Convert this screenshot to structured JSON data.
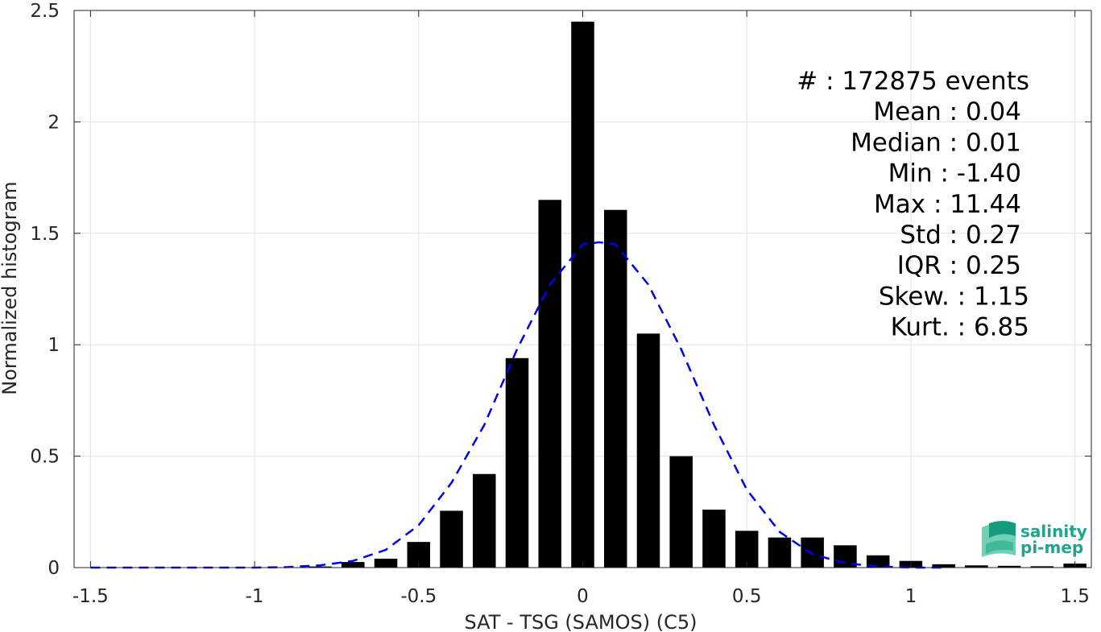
{
  "chart_data": {
    "type": "bar",
    "xlabel": "SAT - TSG (SAMOS) (C5)",
    "ylabel": "Normalized histogram",
    "xlim": [
      -1.55,
      1.55
    ],
    "ylim": [
      0,
      2.5
    ],
    "xticks": [
      -1.5,
      -1,
      -0.5,
      0,
      0.5,
      1,
      1.5
    ],
    "xtick_labels": [
      "-1.5",
      "-1",
      "-0.5",
      "0",
      "0.5",
      "1",
      "1.5"
    ],
    "yticks": [
      0,
      0.5,
      1,
      1.5,
      2,
      2.5
    ],
    "ytick_labels": [
      "0",
      "0.5",
      "1",
      "1.5",
      "2",
      "2.5"
    ],
    "grid": true,
    "bar_color": "#000000",
    "bar_width": 0.07,
    "bars": {
      "x": [
        -0.8,
        -0.7,
        -0.6,
        -0.5,
        -0.4,
        -0.3,
        -0.2,
        -0.1,
        0.0,
        0.1,
        0.2,
        0.3,
        0.4,
        0.5,
        0.6,
        0.7,
        0.8,
        0.9,
        1.0,
        1.1,
        1.2,
        1.3,
        1.4,
        1.5
      ],
      "values": [
        0.005,
        0.025,
        0.04,
        0.115,
        0.255,
        0.42,
        0.94,
        1.65,
        2.45,
        1.605,
        1.05,
        0.5,
        0.26,
        0.165,
        0.135,
        0.135,
        0.1,
        0.055,
        0.03,
        0.015,
        0.01,
        0.008,
        0.006,
        0.018
      ]
    },
    "fit_curve": {
      "style": "dashed",
      "color": "#0000ee",
      "x": [
        -1.5,
        -1.3,
        -1.1,
        -1.0,
        -0.9,
        -0.8,
        -0.7,
        -0.6,
        -0.5,
        -0.4,
        -0.3,
        -0.2,
        -0.1,
        0.0,
        0.05,
        0.1,
        0.2,
        0.3,
        0.4,
        0.5,
        0.6,
        0.7,
        0.8,
        0.9,
        1.0,
        1.1
      ],
      "y": [
        0.0,
        0.0,
        0.0,
        0.0,
        0.002,
        0.01,
        0.03,
        0.08,
        0.19,
        0.38,
        0.64,
        0.98,
        1.27,
        1.45,
        1.46,
        1.45,
        1.27,
        0.98,
        0.64,
        0.35,
        0.16,
        0.06,
        0.02,
        0.005,
        0.0,
        0.0
      ]
    },
    "stats": [
      {
        "label": "#  : 172875 events",
        "anchor": "end",
        "dx": 0
      },
      {
        "label": "Mean : 0.04",
        "anchor": "end",
        "dx": -10
      },
      {
        "label": "Median : 0.01",
        "anchor": "end",
        "dx": -10
      },
      {
        "label": "Min : -1.40",
        "anchor": "end",
        "dx": -10
      },
      {
        "label": "Max : 11.44",
        "anchor": "end",
        "dx": -10
      },
      {
        "label": "Std : 0.27",
        "anchor": "end",
        "dx": -10
      },
      {
        "label": "IQR : 0.25",
        "anchor": "end",
        "dx": -10
      },
      {
        "label": "Skew. : 1.15",
        "anchor": "end",
        "dx": 0
      },
      {
        "label": "Kurt. : 6.85",
        "anchor": "end",
        "dx": 0
      }
    ]
  },
  "logo": {
    "line1": "salinity",
    "line2": "pi-mep",
    "color": "#1ea58c"
  }
}
